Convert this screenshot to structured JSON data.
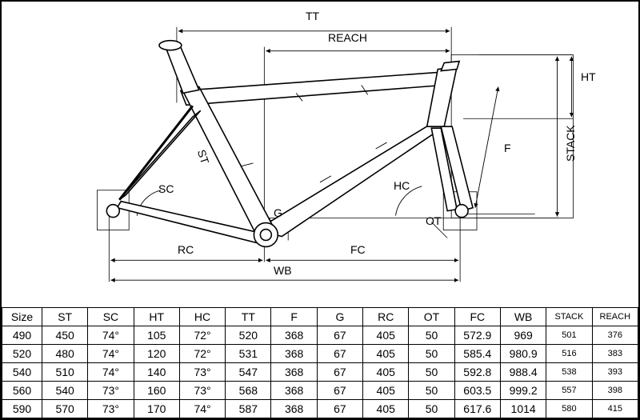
{
  "diagram": {
    "labels": {
      "TT": "TT",
      "REACH": "REACH",
      "HT": "HT",
      "STACK": "STACK",
      "F": "F",
      "ST": "ST",
      "SC": "SC",
      "HC": "HC",
      "G": "G",
      "OT": "OT",
      "RC": "RC",
      "FC": "FC",
      "WB": "WB"
    },
    "stroke_color": "#000000",
    "fill_color": "#ffffff",
    "arrow_size": 5,
    "line_width_thin": 0.8,
    "line_width_frame": 1.5,
    "label_fontsize": 14
  },
  "table": {
    "columns": [
      "Size",
      "ST",
      "SC",
      "HT",
      "HC",
      "TT",
      "F",
      "G",
      "RC",
      "OT",
      "FC",
      "WB",
      "STACK",
      "REACH"
    ],
    "rows": [
      [
        "490",
        "450",
        "74°",
        "105",
        "72°",
        "520",
        "368",
        "67",
        "405",
        "50",
        "572.9",
        "969",
        "501",
        "376"
      ],
      [
        "520",
        "480",
        "74°",
        "120",
        "72°",
        "531",
        "368",
        "67",
        "405",
        "50",
        "585.4",
        "980.9",
        "516",
        "383"
      ],
      [
        "540",
        "510",
        "74°",
        "140",
        "73°",
        "547",
        "368",
        "67",
        "405",
        "50",
        "592.8",
        "988.4",
        "538",
        "393"
      ],
      [
        "560",
        "540",
        "73°",
        "160",
        "73°",
        "568",
        "368",
        "67",
        "405",
        "50",
        "603.5",
        "999.2",
        "557",
        "398"
      ],
      [
        "590",
        "570",
        "73°",
        "170",
        "74°",
        "587",
        "368",
        "67",
        "405",
        "50",
        "617.6",
        "1014",
        "580",
        "415"
      ]
    ],
    "small_cols": [
      12,
      13
    ],
    "header_fontsize": 14,
    "cell_fontsize": 14,
    "border_color": "#000000",
    "background_color": "#ffffff"
  }
}
